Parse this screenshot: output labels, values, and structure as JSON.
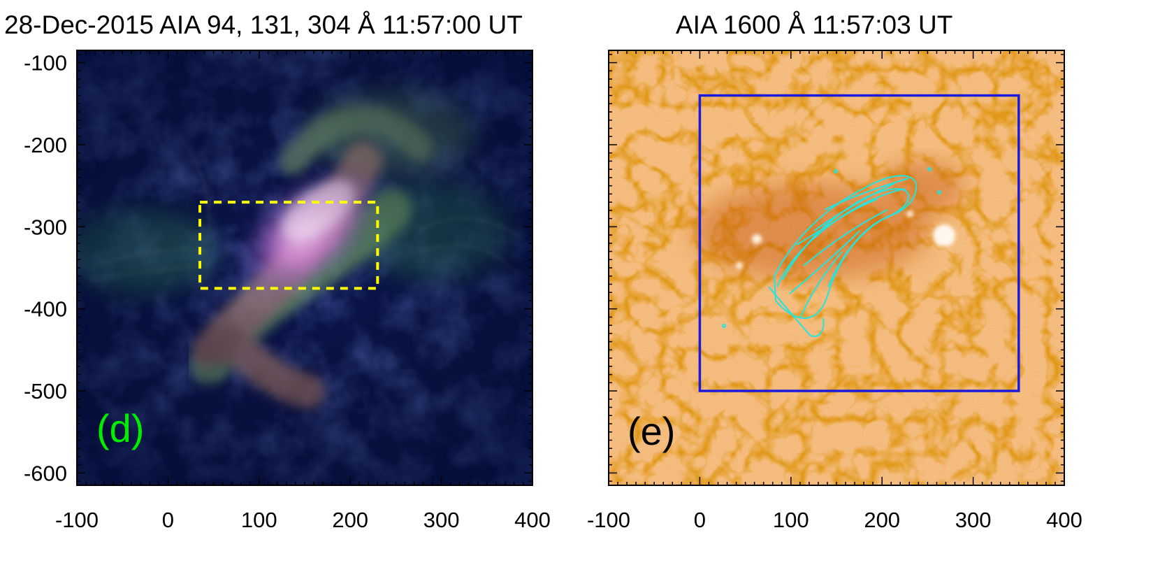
{
  "figure": {
    "panels": [
      {
        "id": "d",
        "title": "28-Dec-2015 AIA 94, 131, 304 Å 11:57:00 UT",
        "label": "(d)",
        "label_color": "#00ee00",
        "box_color": "#ffff00",
        "box_style": "dashed",
        "box_extent": {
          "x": [
            35,
            230
          ],
          "y": [
            -375,
            -270
          ]
        },
        "y_ticks": [
          "-100",
          "-200",
          "-300",
          "-400",
          "-500",
          "-600"
        ],
        "x_ticks": [
          "-100",
          "0",
          "100",
          "200",
          "300",
          "400"
        ],
        "x_range": [
          -100,
          400
        ],
        "y_range": [
          -615,
          -85
        ]
      },
      {
        "id": "e",
        "title": "AIA 1600 Å 11:57:03 UT",
        "label": "(e)",
        "label_color": "#000000",
        "box_color": "#1a1adc",
        "box_style": "solid",
        "box_extent": {
          "x": [
            0,
            350
          ],
          "y": [
            -500,
            -140
          ]
        },
        "contour_color": "#22e5e0",
        "x_ticks": [
          "-100",
          "0",
          "100",
          "200",
          "300",
          "400"
        ],
        "x_range": [
          -100,
          400
        ],
        "y_range": [
          -615,
          -85
        ]
      }
    ]
  }
}
